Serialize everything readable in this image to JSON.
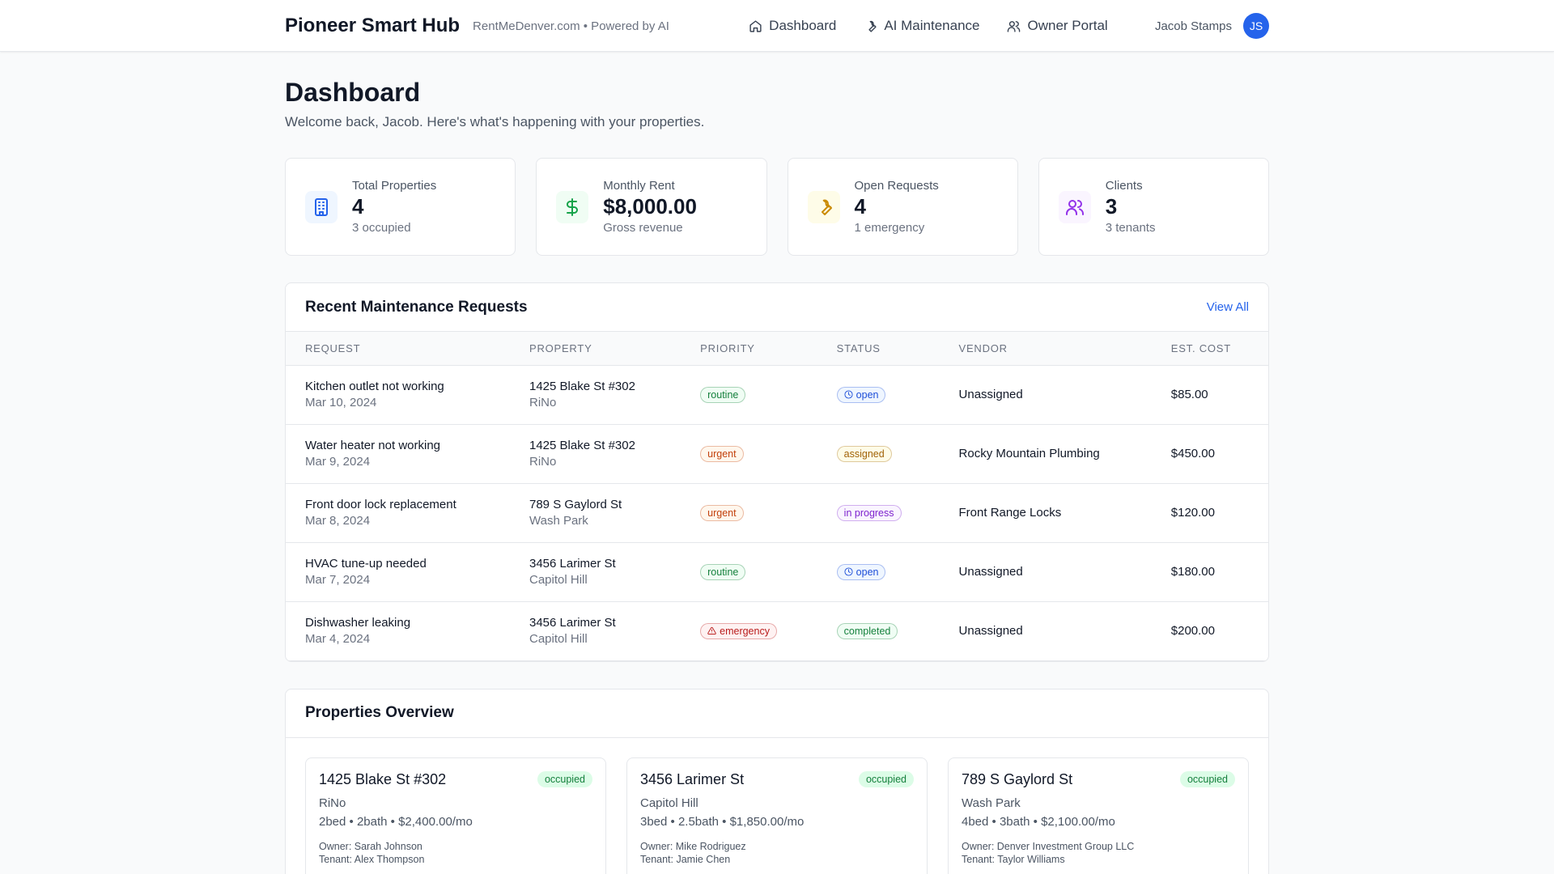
{
  "header": {
    "brand": "Pioneer Smart Hub",
    "tagline": "RentMeDenver.com • Powered by AI",
    "nav": [
      "Dashboard",
      "AI Maintenance",
      "Owner Portal"
    ],
    "user_name": "Jacob Stamps",
    "avatar": "JS"
  },
  "page": {
    "title": "Dashboard",
    "subtitle": "Welcome back, Jacob. Here's what's happening with your properties."
  },
  "stats": [
    {
      "label": "Total Properties",
      "value": "4",
      "note": "3 occupied",
      "color": "#2563eb",
      "bg": "#eff6ff"
    },
    {
      "label": "Monthly Rent",
      "value": "$8,000.00",
      "note": "Gross revenue",
      "color": "#16a34a",
      "bg": "#f0fdf4"
    },
    {
      "label": "Open Requests",
      "value": "4",
      "note": "1 emergency",
      "color": "#ca8a04",
      "bg": "#fefce8"
    },
    {
      "label": "Clients",
      "value": "3",
      "note": "3 tenants",
      "color": "#9333ea",
      "bg": "#faf5ff"
    }
  ],
  "maintenance": {
    "title": "Recent Maintenance Requests",
    "view_all": "View All",
    "columns": [
      "REQUEST",
      "PROPERTY",
      "PRIORITY",
      "STATUS",
      "VENDOR",
      "EST. COST"
    ],
    "rows": [
      {
        "request": "Kitchen outlet not working",
        "date": "Mar 10, 2024",
        "property": "1425 Blake St #302",
        "area": "RiNo",
        "priority": "routine",
        "priority_color": "#15803d",
        "priority_bg": "#f0fdf4",
        "status": "open",
        "status_color": "#1d4ed8",
        "status_bg": "#eff6ff",
        "vendor": "Unassigned",
        "cost": "$85.00"
      },
      {
        "request": "Water heater not working",
        "date": "Mar 9, 2024",
        "property": "1425 Blake St #302",
        "area": "RiNo",
        "priority": "urgent",
        "priority_color": "#c2410c",
        "priority_bg": "#fff7ed",
        "status": "assigned",
        "status_color": "#a16207",
        "status_bg": "#fefce8",
        "vendor": "Rocky Mountain Plumbing",
        "cost": "$450.00"
      },
      {
        "request": "Front door lock replacement",
        "date": "Mar 8, 2024",
        "property": "789 S Gaylord St",
        "area": "Wash Park",
        "priority": "urgent",
        "priority_color": "#c2410c",
        "priority_bg": "#fff7ed",
        "status": "in progress",
        "status_color": "#7e22ce",
        "status_bg": "#faf5ff",
        "vendor": "Front Range Locks",
        "cost": "$120.00"
      },
      {
        "request": "HVAC tune-up needed",
        "date": "Mar 7, 2024",
        "property": "3456 Larimer St",
        "area": "Capitol Hill",
        "priority": "routine",
        "priority_color": "#15803d",
        "priority_bg": "#f0fdf4",
        "status": "open",
        "status_color": "#1d4ed8",
        "status_bg": "#eff6ff",
        "vendor": "Unassigned",
        "cost": "$180.00"
      },
      {
        "request": "Dishwasher leaking",
        "date": "Mar 4, 2024",
        "property": "3456 Larimer St",
        "area": "Capitol Hill",
        "priority": "emergency",
        "priority_color": "#b91c1c",
        "priority_bg": "#fef2f2",
        "status": "completed",
        "status_color": "#15803d",
        "status_bg": "#f0fdf4",
        "vendor": "Unassigned",
        "cost": "$200.00"
      }
    ]
  },
  "properties": {
    "title": "Properties Overview",
    "cards": [
      {
        "address": "1425 Blake St #302",
        "status": "occupied",
        "area": "RiNo",
        "details": "2bed • 2bath • $2,400.00/mo",
        "owner": "Owner: Sarah Johnson",
        "tenant": "Tenant: Alex Thompson"
      },
      {
        "address": "3456 Larimer St",
        "status": "occupied",
        "area": "Capitol Hill",
        "details": "3bed • 2.5bath • $1,850.00/mo",
        "owner": "Owner: Mike Rodriguez",
        "tenant": "Tenant: Jamie Chen"
      },
      {
        "address": "789 S Gaylord St",
        "status": "occupied",
        "area": "Wash Park",
        "details": "4bed • 3bath • $2,100.00/mo",
        "owner": "Owner: Denver Investment Group LLC",
        "tenant": "Tenant: Taylor Williams"
      }
    ]
  }
}
